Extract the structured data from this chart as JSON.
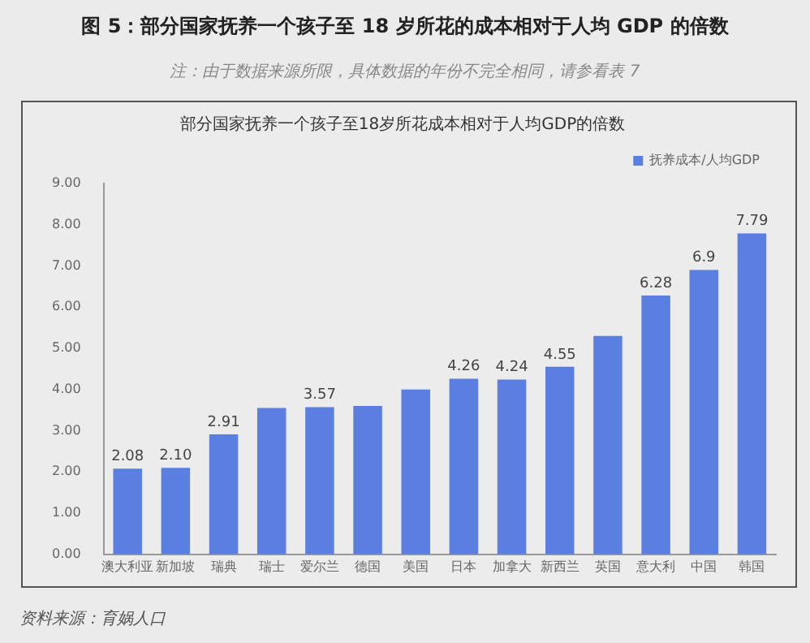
{
  "chart_data": {
    "type": "bar",
    "title": "图 5：部分国家抚养一个孩子至 18 岁所花的成本相对于人均 GDP 的倍数",
    "subtitle": "注：由于数据来源所限，具体数据的年份不完全相同，请参看表 7",
    "annotations": [
      "部分国家抚养一个孩子至18岁所花成本相对于人均GDP的倍数",
      "资料来源：育娲人口"
    ],
    "categories": [
      "澳大利亚",
      "新加坡",
      "瑞典",
      "瑞士",
      "爱尔兰",
      "德国",
      "美国",
      "日本",
      "加拿大",
      "新西兰",
      "英国",
      "意大利",
      "中国",
      "韩国"
    ],
    "series": [
      {
        "name": "抚养成本/人均GDP",
        "color": "#5b7fe0",
        "values": [
          2.08,
          2.1,
          2.91,
          3.55,
          3.57,
          3.6,
          4.0,
          4.26,
          4.24,
          4.55,
          5.3,
          6.28,
          6.9,
          7.79
        ],
        "value_labels": [
          "2.08",
          "2.10",
          "2.91",
          null,
          "3.57",
          null,
          null,
          "4.26",
          "4.24",
          "4.55",
          null,
          "6.28",
          "6.9",
          "7.79"
        ]
      }
    ],
    "ylim": [
      0,
      9
    ],
    "yticks": [
      {
        "value": 0,
        "label": "0.00"
      },
      {
        "value": 1,
        "label": "1.00"
      },
      {
        "value": 2,
        "label": "2.00"
      },
      {
        "value": 3,
        "label": "3.00"
      },
      {
        "value": 4,
        "label": "4.00"
      },
      {
        "value": 5,
        "label": "5.00"
      },
      {
        "value": 6,
        "label": "6.00"
      },
      {
        "value": 7,
        "label": "7.00"
      },
      {
        "value": 8,
        "label": "8.00"
      },
      {
        "value": 9,
        "label": "9.00"
      }
    ],
    "legend": "top right"
  }
}
